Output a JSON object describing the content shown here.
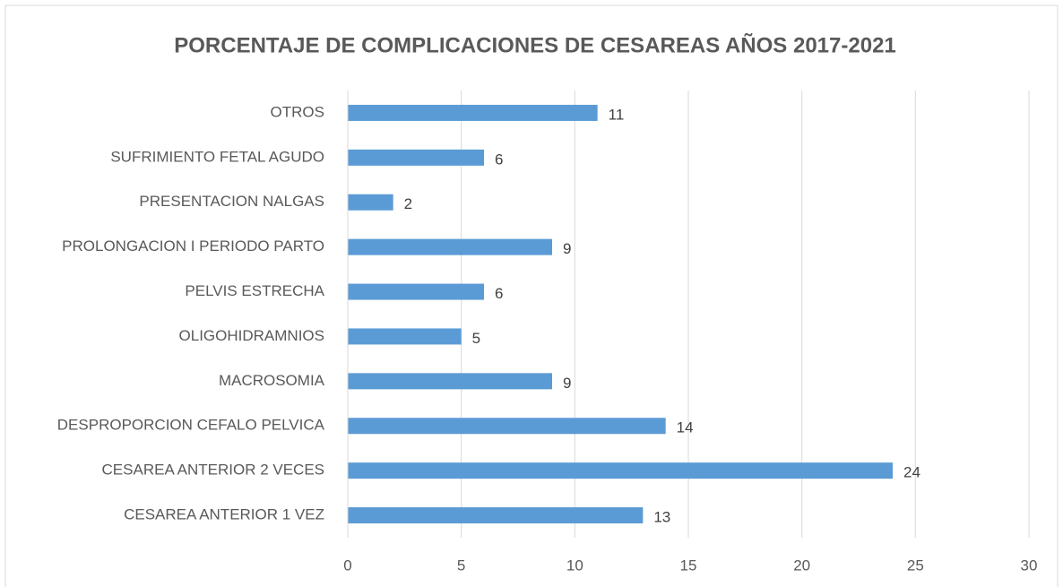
{
  "chart_data": {
    "type": "bar",
    "orientation": "horizontal",
    "title": "PORCENTAJE DE COMPLICACIONES DE CESAREAS AÑOS 2017-2021",
    "categories": [
      "OTROS",
      "SUFRIMIENTO FETAL AGUDO",
      "PRESENTACION NALGAS",
      "PROLONGACION I PERIODO PARTO",
      "PELVIS ESTRECHA",
      "OLIGOHIDRAMNIOS",
      "MACROSOMIA",
      "DESPROPORCION CEFALO PELVICA",
      "CESAREA ANTERIOR 2 VECES",
      "CESAREA ANTERIOR 1 VEZ"
    ],
    "values": [
      11,
      6,
      2,
      9,
      6,
      5,
      9,
      14,
      24,
      13
    ],
    "color": "#5b9bd5",
    "xlim": [
      0,
      30
    ],
    "xticks": [
      0,
      5,
      10,
      15,
      20,
      25,
      30
    ],
    "grid": true
  }
}
